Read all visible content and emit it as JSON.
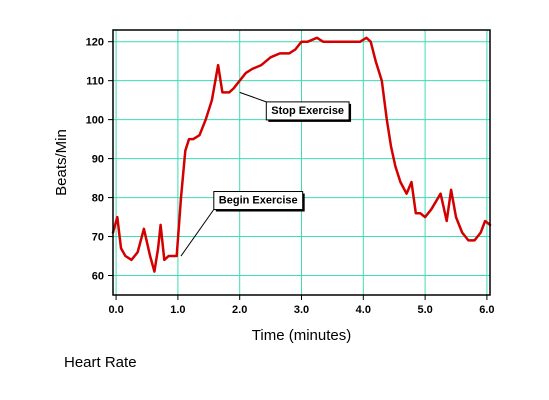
{
  "chart_data": {
    "type": "line",
    "title": "",
    "xlabel": "Time (minutes)",
    "ylabel": "Beats/Min",
    "xlim": [
      -0.05,
      6.05
    ],
    "ylim": [
      55,
      123
    ],
    "grid": true,
    "x_ticks": [
      0.0,
      1.0,
      2.0,
      3.0,
      4.0,
      5.0,
      6.0
    ],
    "x_tick_labels": [
      "0.0",
      "1.0",
      "2.0",
      "3.0",
      "4.0",
      "5.0",
      "6.0"
    ],
    "y_ticks": [
      60,
      70,
      80,
      90,
      100,
      110,
      120
    ],
    "y_tick_labels": [
      "60",
      "70",
      "80",
      "90",
      "100",
      "110",
      "120"
    ],
    "series": [
      {
        "color": "#d40000",
        "x": [
          -0.05,
          0.02,
          0.08,
          0.15,
          0.25,
          0.35,
          0.45,
          0.55,
          0.62,
          0.68,
          0.72,
          0.78,
          0.85,
          0.92,
          0.98,
          1.05,
          1.12,
          1.18,
          1.25,
          1.35,
          1.45,
          1.55,
          1.65,
          1.72,
          1.78,
          1.83,
          1.9,
          2.0,
          2.1,
          2.2,
          2.35,
          2.5,
          2.65,
          2.8,
          2.9,
          3.0,
          3.1,
          3.25,
          3.35,
          3.5,
          3.65,
          3.8,
          3.95,
          4.05,
          4.12,
          4.2,
          4.3,
          4.38,
          4.45,
          4.52,
          4.6,
          4.7,
          4.78,
          4.85,
          4.92,
          5.0,
          5.1,
          5.25,
          5.35,
          5.42,
          5.5,
          5.6,
          5.7,
          5.8,
          5.9,
          5.97,
          6.05
        ],
        "values": [
          71,
          75,
          67,
          65,
          64,
          66,
          72,
          65,
          61,
          67,
          73,
          64,
          65,
          65,
          65,
          80,
          92,
          95,
          95,
          96,
          100,
          105,
          114,
          107,
          107,
          107,
          108,
          110,
          112,
          113,
          114,
          116,
          117,
          117,
          118,
          120,
          120,
          121,
          120,
          120,
          120,
          120,
          120,
          121,
          120,
          115,
          110,
          100,
          93,
          88,
          84,
          81,
          84,
          76,
          76,
          75,
          77,
          81,
          74,
          82,
          75,
          71,
          69,
          69,
          71,
          74,
          73
        ]
      }
    ],
    "annotations": [
      {
        "text": "Stop Exercise",
        "x": 2.0,
        "y": 107,
        "label_x": 3.1,
        "label_y": 102.5
      },
      {
        "text": "Begin Exercise",
        "x": 1.05,
        "y": 65,
        "label_x": 2.3,
        "label_y": 79.5
      }
    ]
  },
  "caption": "Heart Rate"
}
